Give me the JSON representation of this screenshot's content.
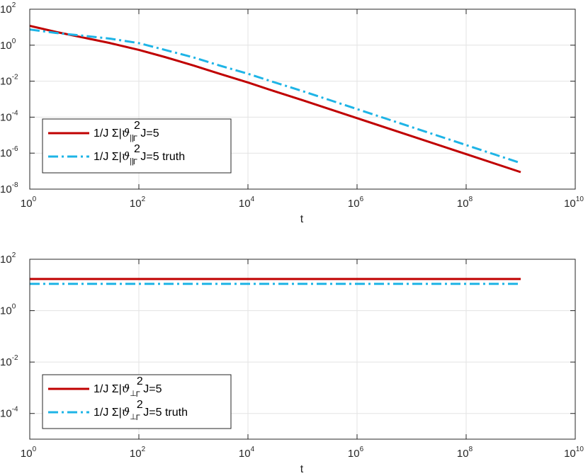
{
  "chart_data": [
    {
      "type": "line",
      "xscale": "log",
      "yscale": "log",
      "xlim": [
        1,
        10000000000
      ],
      "ylim": [
        1e-08,
        100
      ],
      "xlabel": "t",
      "ylabel": "",
      "xticks": [
        {
          "base": "10",
          "exp": "0",
          "value": 1
        },
        {
          "base": "10",
          "exp": "2",
          "value": 100
        },
        {
          "base": "10",
          "exp": "4",
          "value": 10000
        },
        {
          "base": "10",
          "exp": "6",
          "value": 1000000
        },
        {
          "base": "10",
          "exp": "8",
          "value": 100000000
        },
        {
          "base": "10",
          "exp": "10",
          "value": 10000000000
        }
      ],
      "yticks": [
        {
          "base": "10",
          "exp": "-8",
          "value": 1e-08
        },
        {
          "base": "10",
          "exp": "-6",
          "value": 1e-06
        },
        {
          "base": "10",
          "exp": "-4",
          "value": 0.0001
        },
        {
          "base": "10",
          "exp": "-2",
          "value": 0.01
        },
        {
          "base": "10",
          "exp": "0",
          "value": 1
        },
        {
          "base": "10",
          "exp": "2",
          "value": 100
        }
      ],
      "grid": true,
      "legend_position": "lower-left",
      "series": [
        {
          "legend": {
            "prefix": "1/J Σ|",
            "theta": "ϑ",
            "sub": "||",
            "sup": "2",
            "gamma": "Γ",
            "suffix": " J=5"
          },
          "color": "#c00000",
          "style": "solid",
          "x": [
            1,
            3,
            10,
            30,
            100,
            300,
            1000,
            3000,
            10000,
            30000,
            100000,
            1000000,
            10000000,
            100000000,
            1000000000
          ],
          "y": [
            12,
            5.5,
            2.6,
            1.3,
            0.55,
            0.22,
            0.075,
            0.026,
            0.0085,
            0.0028,
            0.00088,
            8.8e-05,
            8.8e-06,
            8.8e-07,
            8.8e-08
          ]
        },
        {
          "legend": {
            "prefix": "1/J Σ|",
            "theta": "ϑ",
            "sub": "||",
            "sup": "2",
            "gamma": "Γ",
            "suffix": " J=5 truth"
          },
          "color": "#1eb4e6",
          "style": "dashdot",
          "x": [
            1,
            3,
            10,
            30,
            100,
            300,
            1000,
            3000,
            10000,
            30000,
            100000,
            1000000,
            10000000,
            100000000,
            1000000000
          ],
          "y": [
            7.5,
            4.8,
            3.3,
            2.3,
            1.3,
            0.55,
            0.21,
            0.075,
            0.026,
            0.0088,
            0.0028,
            0.00028,
            2.8e-05,
            2.8e-06,
            2.8e-07
          ]
        }
      ]
    },
    {
      "type": "line",
      "xscale": "log",
      "yscale": "log",
      "xlim": [
        1,
        10000000000
      ],
      "ylim": [
        1e-05,
        100
      ],
      "xlabel": "t",
      "ylabel": "",
      "xticks": [
        {
          "base": "10",
          "exp": "0",
          "value": 1
        },
        {
          "base": "10",
          "exp": "2",
          "value": 100
        },
        {
          "base": "10",
          "exp": "4",
          "value": 10000
        },
        {
          "base": "10",
          "exp": "6",
          "value": 1000000
        },
        {
          "base": "10",
          "exp": "8",
          "value": 100000000
        },
        {
          "base": "10",
          "exp": "10",
          "value": 10000000000
        }
      ],
      "yticks": [
        {
          "base": "10",
          "exp": "-4",
          "value": 0.0001
        },
        {
          "base": "10",
          "exp": "-2",
          "value": 0.01
        },
        {
          "base": "10",
          "exp": "0",
          "value": 1
        },
        {
          "base": "10",
          "exp": "2",
          "value": 100
        }
      ],
      "grid": true,
      "legend_position": "lower-left",
      "series": [
        {
          "legend": {
            "prefix": "1/J Σ|",
            "theta": "ϑ",
            "sub": "⊥",
            "sup": "2",
            "gamma": "Γ",
            "suffix": " J=5"
          },
          "color": "#c00000",
          "style": "solid",
          "x": [
            1,
            1000000000
          ],
          "y": [
            17,
            17
          ]
        },
        {
          "legend": {
            "prefix": "1/J Σ|",
            "theta": "ϑ",
            "sub": "⊥",
            "sup": "2",
            "gamma": "Γ",
            "suffix": " J=5 truth"
          },
          "color": "#1eb4e6",
          "style": "dashdot",
          "x": [
            1,
            1000000000
          ],
          "y": [
            11,
            11
          ]
        }
      ]
    }
  ]
}
